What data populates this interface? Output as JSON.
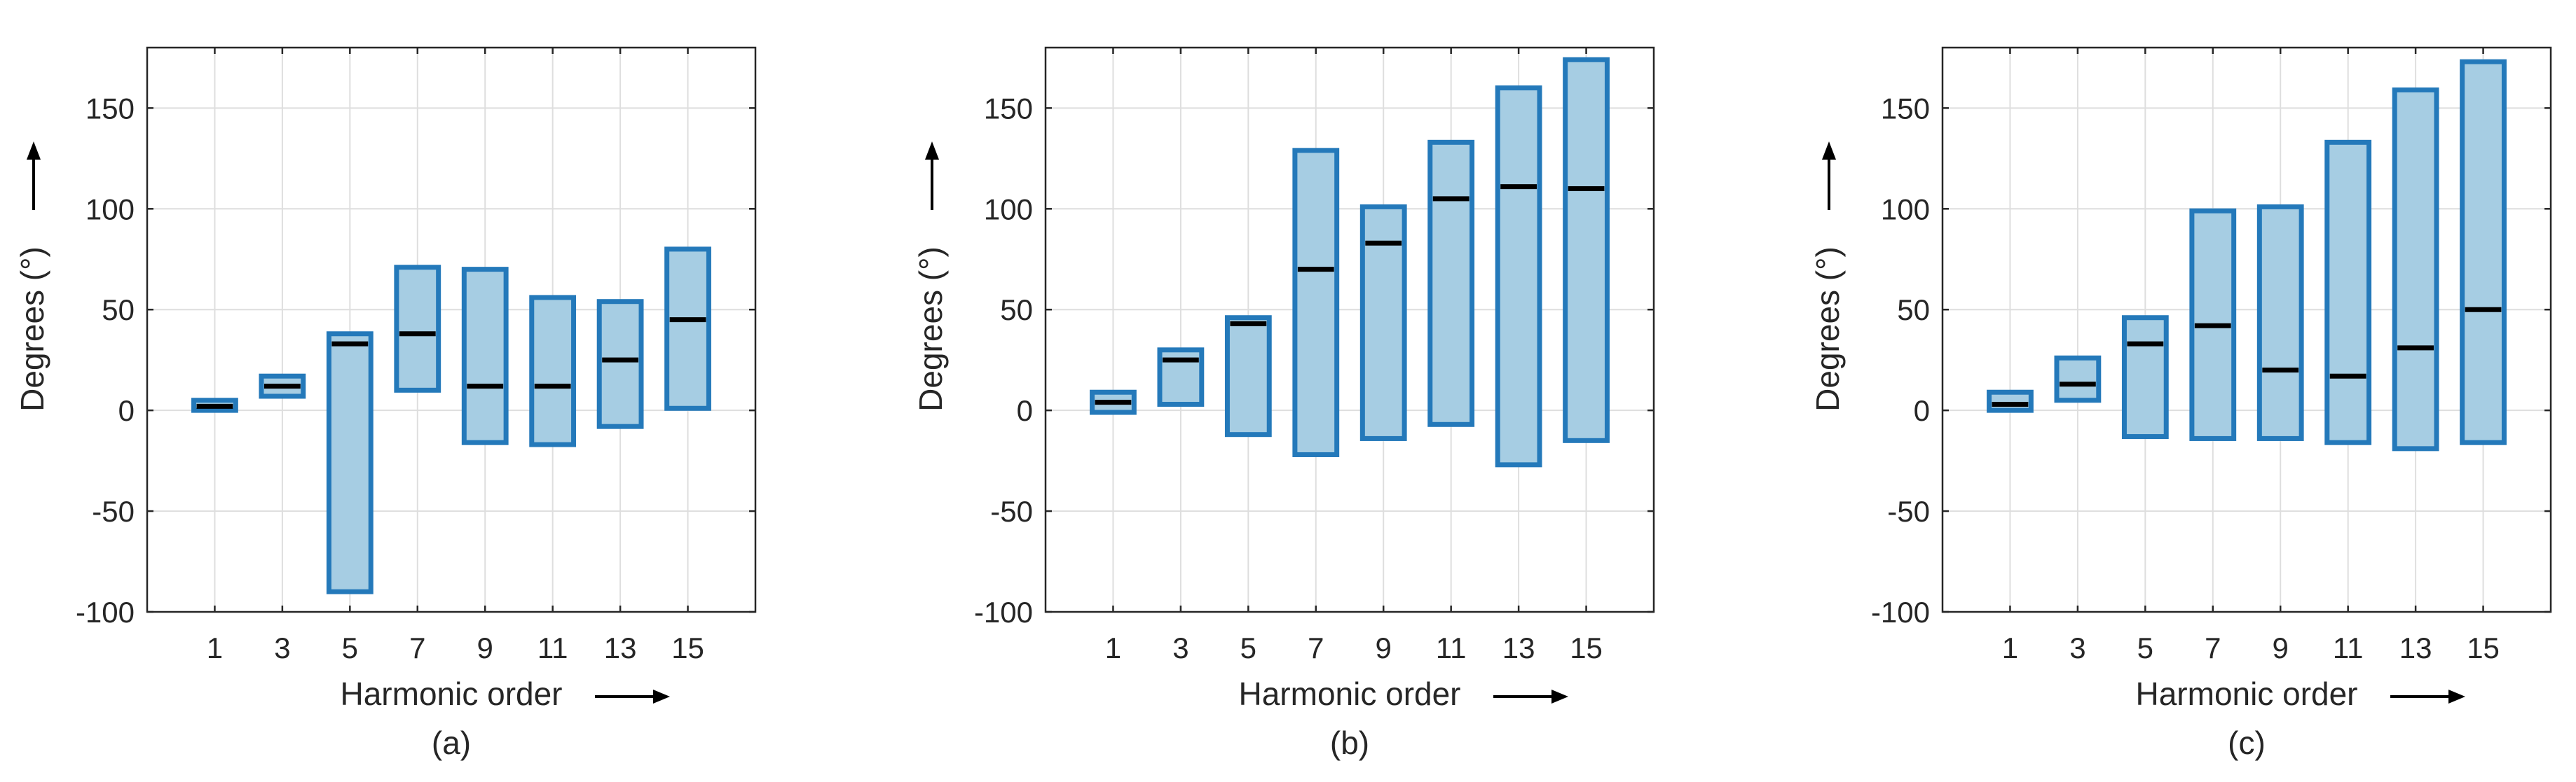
{
  "colors": {
    "box_fill": "#a6cde3",
    "box_edge": "#2479ba",
    "median": "#000000",
    "grid": "#dedede",
    "axis": "#262626"
  },
  "chart_data": [
    {
      "type": "bar",
      "panel_label": "(a)",
      "xlabel": "Harmonic order",
      "ylabel": "Degrees (°)",
      "ylim": [
        -100,
        180
      ],
      "yticks": [
        -100,
        -50,
        0,
        50,
        100,
        150
      ],
      "categories": [
        "1",
        "3",
        "5",
        "7",
        "9",
        "11",
        "13",
        "15"
      ],
      "grid": true,
      "series": [
        {
          "low": [
            0,
            7,
            -90,
            10,
            -16,
            -17,
            -8,
            1
          ],
          "high": [
            5,
            17,
            38,
            71,
            70,
            56,
            54,
            80
          ],
          "median": [
            2,
            12,
            33,
            38,
            12,
            12,
            25,
            45
          ]
        }
      ]
    },
    {
      "type": "bar",
      "panel_label": "(b)",
      "xlabel": "Harmonic order",
      "ylabel": "Degrees (°)",
      "ylim": [
        -100,
        180
      ],
      "yticks": [
        -100,
        -50,
        0,
        50,
        100,
        150
      ],
      "categories": [
        "1",
        "3",
        "5",
        "7",
        "9",
        "11",
        "13",
        "15"
      ],
      "grid": true,
      "series": [
        {
          "low": [
            -1,
            3,
            -12,
            -22,
            -14,
            -7,
            -27,
            -15
          ],
          "high": [
            9,
            30,
            46,
            129,
            101,
            133,
            160,
            174
          ],
          "median": [
            4,
            25,
            43,
            70,
            83,
            105,
            111,
            110
          ]
        }
      ]
    },
    {
      "type": "bar",
      "panel_label": "(c)",
      "xlabel": "Harmonic order",
      "ylabel": "Degrees (°)",
      "ylim": [
        -100,
        180
      ],
      "yticks": [
        -100,
        -50,
        0,
        50,
        100,
        150
      ],
      "categories": [
        "1",
        "3",
        "5",
        "7",
        "9",
        "11",
        "13",
        "15"
      ],
      "grid": true,
      "series": [
        {
          "low": [
            0,
            5,
            -13,
            -14,
            -14,
            -16,
            -19,
            -16
          ],
          "high": [
            9,
            26,
            46,
            99,
            101,
            133,
            159,
            173
          ],
          "median": [
            3,
            13,
            33,
            42,
            20,
            17,
            31,
            50
          ]
        }
      ]
    }
  ]
}
